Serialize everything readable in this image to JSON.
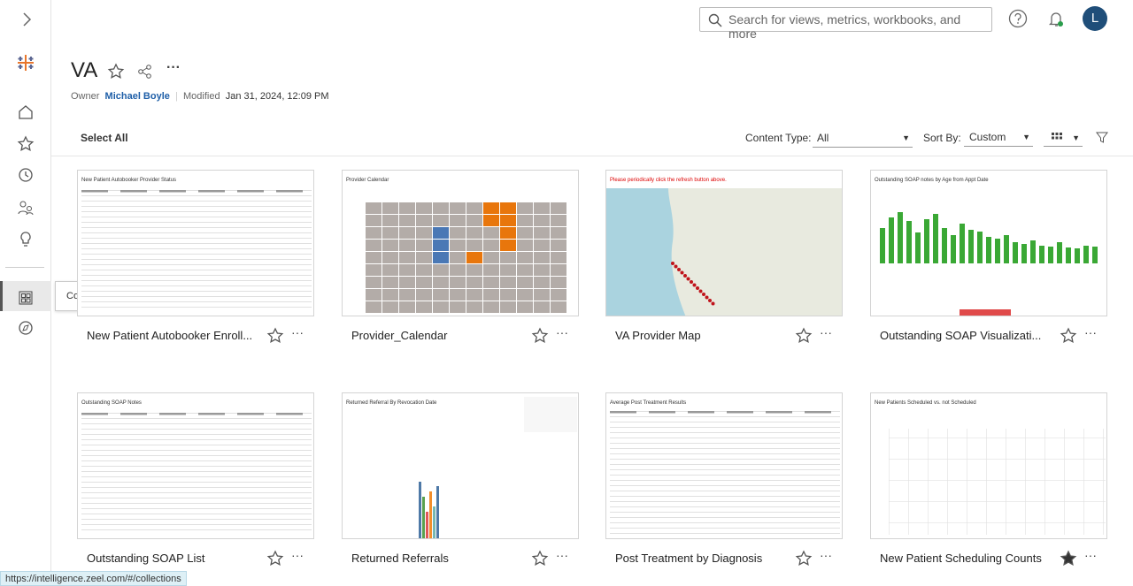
{
  "header": {
    "search_placeholder": "Search for views, metrics, workbooks, and more",
    "avatar": "L"
  },
  "sidebar": {
    "tooltip": "Collections"
  },
  "page": {
    "title": "VA",
    "owner_label": "Owner",
    "owner": "Michael Boyle",
    "modified_label": "Modified",
    "modified": "Jan 31, 2024, 12:09 PM"
  },
  "toolbar": {
    "select_all": "Select All",
    "content_type_label": "Content Type:",
    "content_type": "All",
    "sort_by_label": "Sort By:",
    "sort_by": "Custom"
  },
  "items": [
    {
      "name": "New Patient Autobooker Enroll...",
      "thumbnail_title": "New Patient Autobooker Provider Status",
      "favorite": false
    },
    {
      "name": "Provider_Calendar",
      "thumbnail_title": "Provider Calendar",
      "favorite": false
    },
    {
      "name": "VA Provider Map",
      "thumbnail_title": "Please periodically click the refresh button above.",
      "favorite": false
    },
    {
      "name": "Outstanding SOAP Visualizati...",
      "thumbnail_title": "Outstanding SOAP notes by Age from Appt Date",
      "favorite": false
    },
    {
      "name": "Outstanding SOAP List",
      "thumbnail_title": "Outstanding SOAP Notes",
      "favorite": false
    },
    {
      "name": "Returned Referrals",
      "thumbnail_title": "Returned Referral By Revocation Date",
      "favorite": false
    },
    {
      "name": "Post Treatment by Diagnosis",
      "thumbnail_title": "Average Post Treatment Results",
      "favorite": false
    },
    {
      "name": "New Patient Scheduling Counts",
      "thumbnail_title": "New Patients Scheduled vs. not Scheduled",
      "favorite": true
    }
  ],
  "status_bar": "https://intelligence.zeel.com/#/collections"
}
